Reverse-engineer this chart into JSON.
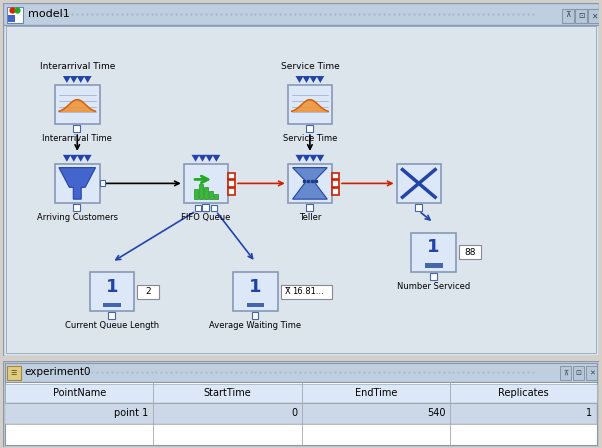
{
  "title_bar": "model1",
  "exp_bar": "experiment0",
  "outer_bg": "#d4d0c8",
  "titlebar_bg": "#c8d8e8",
  "titlebar_dot": "#a8b8c8",
  "canvas_bg": "#dce4ec",
  "node_bg": "#dce8f8",
  "node_border": "#8898b8",
  "node_border_gray": "#9898a8",
  "btn_bg": "#c8d0d8",
  "table_bg": "#ffffff",
  "table_row_bg": "#ccd8e8",
  "table_header_bg": "#dce8f8",
  "table_border": "#a0a8b0",
  "title_bar_label": "model1",
  "exp_label": "experiment0",
  "table_columns": [
    "PointName",
    "StartTime",
    "EndTime",
    "Replicates"
  ],
  "table_row": [
    "point 1",
    "0",
    "540",
    "1"
  ],
  "value_88": "88",
  "value_2": "2",
  "value_avg": "16.81...",
  "blue_dark": "#1a3a8a",
  "blue_tri": "#2244aa",
  "red_port": "#cc2200",
  "green_icon": "#22aa22",
  "orange_curve": "#e07020",
  "funnel_color": "#5577cc",
  "teller_color": "#4466bb"
}
